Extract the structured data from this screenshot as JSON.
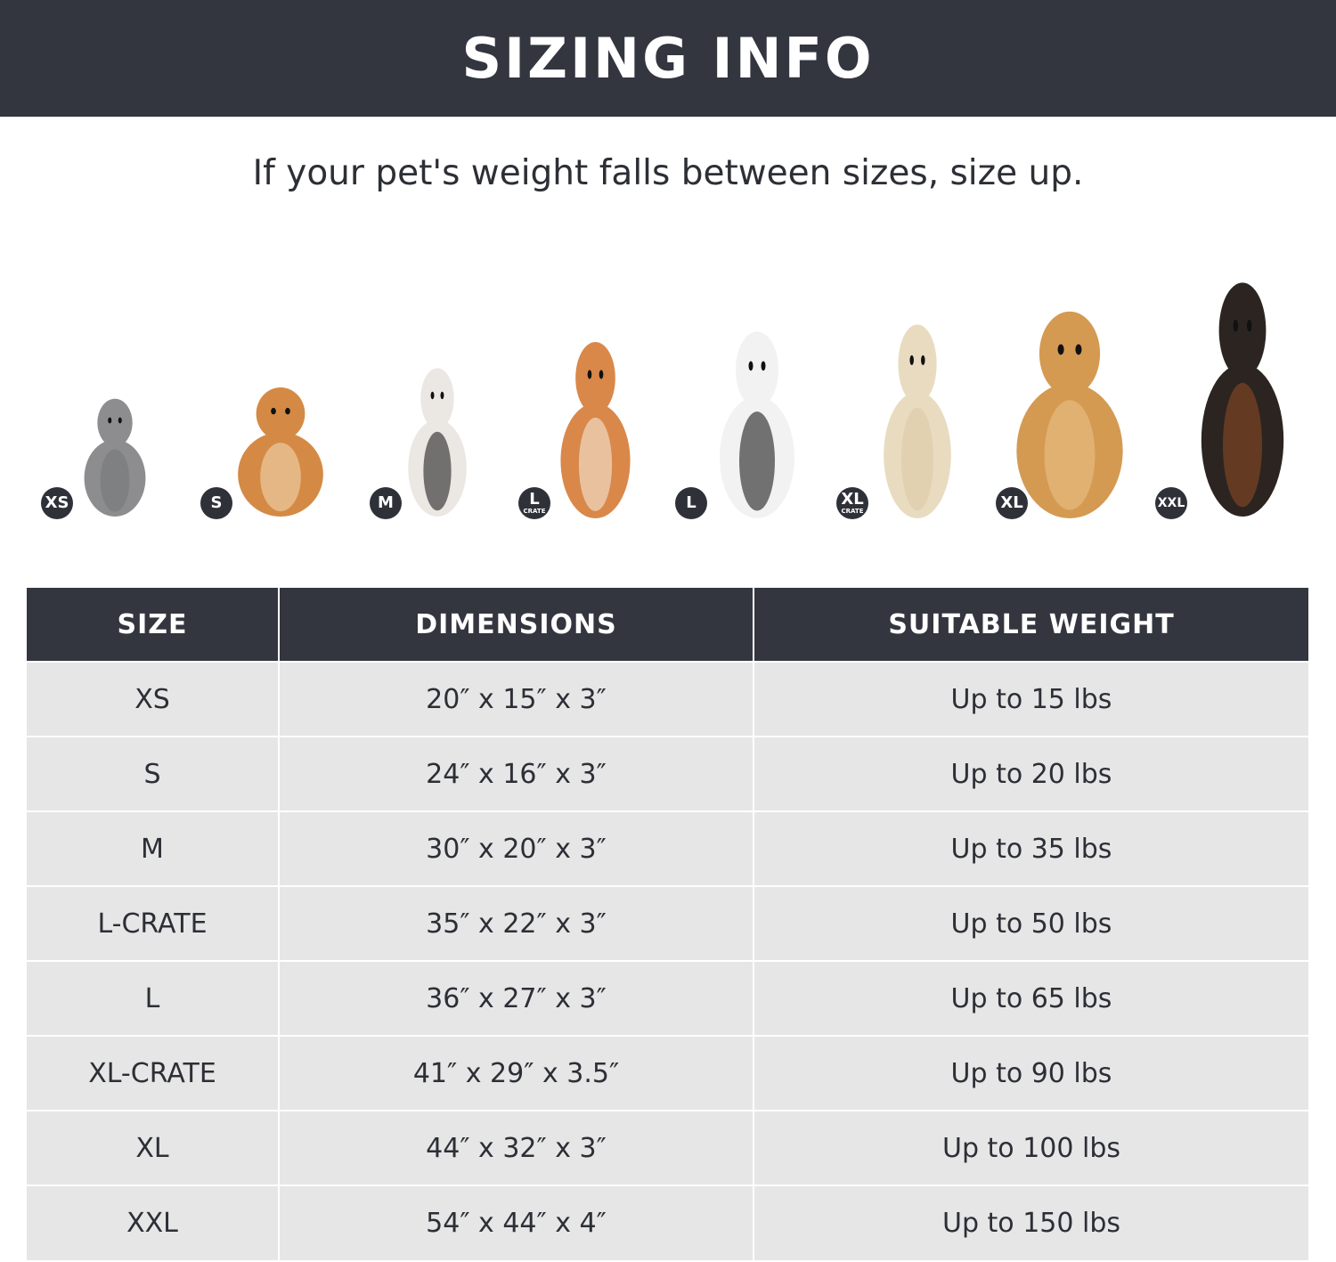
{
  "title": "SIZING INFO",
  "subtitle": "If your pet's weight falls between sizes, size up.",
  "pets": [
    {
      "badge": "XS",
      "sub": "",
      "icon": "cat-icon"
    },
    {
      "badge": "S",
      "sub": "",
      "icon": "pomeranian-icon"
    },
    {
      "badge": "M",
      "sub": "",
      "icon": "french-bulldog-icon"
    },
    {
      "badge": "L",
      "sub": "CRATE",
      "icon": "shiba-inu-icon"
    },
    {
      "badge": "L",
      "sub": "",
      "icon": "border-collie-icon"
    },
    {
      "badge": "XL",
      "sub": "CRATE",
      "icon": "labrador-icon"
    },
    {
      "badge": "XL",
      "sub": "",
      "icon": "golden-retriever-icon"
    },
    {
      "badge": "XXL",
      "sub": "",
      "icon": "doberman-icon"
    }
  ],
  "table": {
    "headers": [
      "SIZE",
      "DIMENSIONS",
      "SUITABLE WEIGHT"
    ],
    "rows": [
      [
        "XS",
        "20″ x 15″ x 3″",
        "Up to 15 lbs"
      ],
      [
        "S",
        "24″ x 16″ x 3″",
        "Up to 20 lbs"
      ],
      [
        "M",
        "30″ x 20″ x 3″",
        "Up to 35 lbs"
      ],
      [
        "L-CRATE",
        "35″ x 22″ x 3″",
        "Up to 50 lbs"
      ],
      [
        "L",
        "36″ x 27″ x 3″",
        "Up to 65 lbs"
      ],
      [
        "XL-CRATE",
        "41″ x 29″ x 3.5″",
        "Up to 90 lbs"
      ],
      [
        "XL",
        "44″ x 32″ x 3″",
        "Up to 100 lbs"
      ],
      [
        "XXL",
        "54″ x 44″ x 4″",
        "Up to 150 lbs"
      ]
    ]
  },
  "colors": {
    "dark": "#33363f",
    "row": "#e6e6e6"
  }
}
